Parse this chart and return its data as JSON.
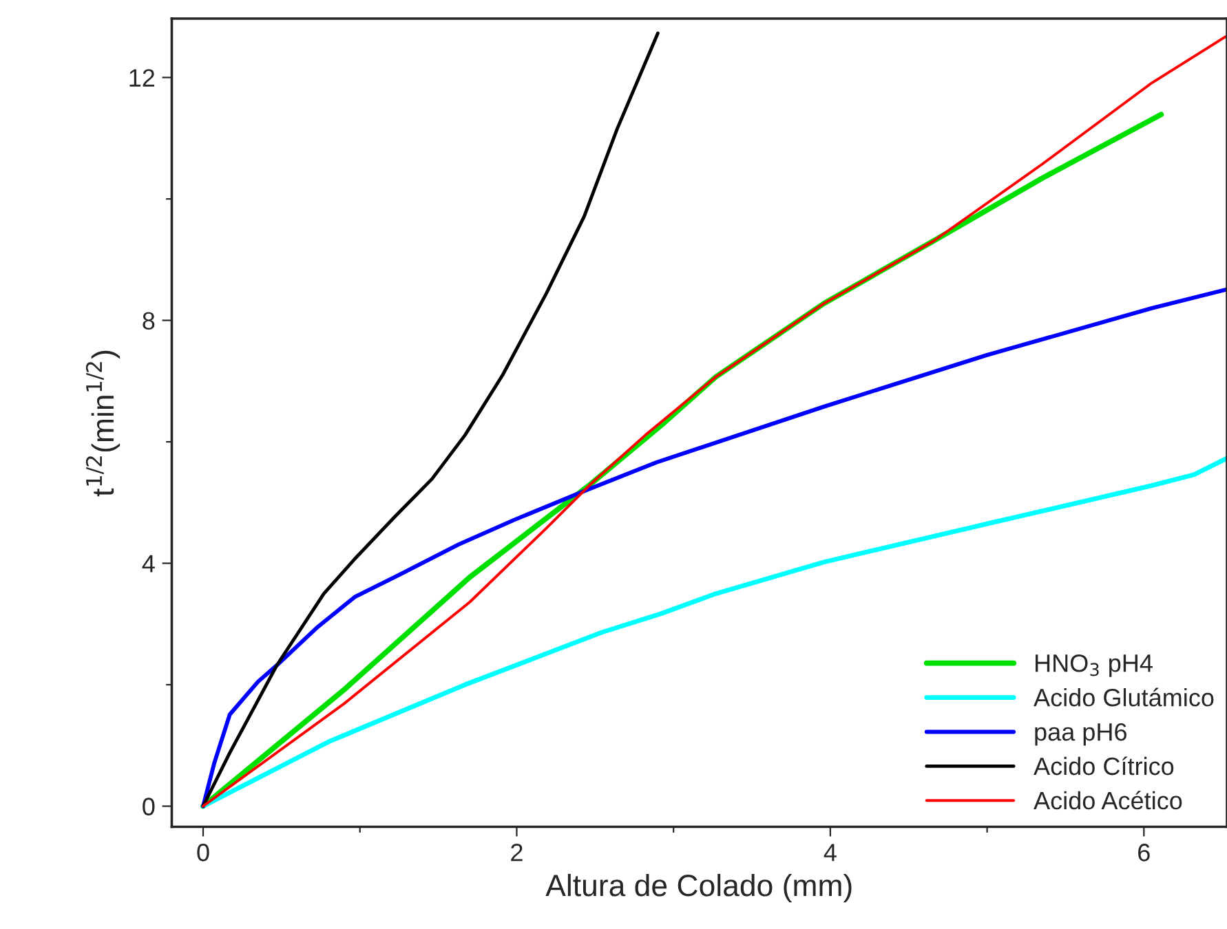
{
  "chart_data": {
    "type": "line",
    "xlabel": "Altura de Colado (mm)",
    "ylabel": "t$^{1/2}$(min$^{1/2}$)",
    "xlim": [
      -0.2,
      6.53
    ],
    "ylim": [
      -0.34,
      12.97
    ],
    "xticks": [
      0,
      {
        "value": 1,
        "label": null
      },
      2,
      {
        "value": 3,
        "label": null
      },
      4,
      {
        "value": 5,
        "label": null
      },
      6
    ],
    "yticks": [
      0,
      {
        "value": 2,
        "label": null
      },
      4,
      {
        "value": 6,
        "label": null
      },
      8,
      {
        "value": 10,
        "label": null
      },
      12
    ],
    "grid": false,
    "legend": "bottom right",
    "marker": "none",
    "line_style": "solid",
    "series": [
      {
        "name": "HNO$_{3}$ pH4",
        "color": "#00e000",
        "x": [
          0,
          0.9,
          1.7,
          2.47,
          2.92,
          3.27,
          3.96,
          4.66,
          5.35,
          6.11
        ],
        "values": [
          0,
          1.92,
          3.77,
          5.3,
          6.27,
          7.07,
          8.28,
          9.31,
          10.34,
          11.39
        ]
      },
      {
        "name": "Acido Glutámico",
        "color": "#00ffff",
        "x": [
          0,
          0.8,
          1.67,
          2.54,
          2.92,
          3.27,
          3.96,
          5.0,
          6.05,
          6.32,
          6.53
        ],
        "values": [
          0,
          1.06,
          2.0,
          2.86,
          3.17,
          3.5,
          4.02,
          4.65,
          5.28,
          5.46,
          5.73
        ]
      },
      {
        "name": "paa pH6",
        "color": "#0000ff",
        "x": [
          0,
          0.07,
          0.17,
          0.35,
          0.47,
          0.73,
          0.97,
          1.25,
          1.63,
          1.98,
          2.45,
          2.89,
          3.96,
          5.0,
          6.05,
          6.53
        ],
        "values": [
          0,
          0.7,
          1.51,
          2.05,
          2.32,
          2.95,
          3.45,
          3.81,
          4.31,
          4.71,
          5.21,
          5.66,
          6.58,
          7.43,
          8.2,
          8.51
        ]
      },
      {
        "name": "Acido Cítrico",
        "color": "#000000",
        "x": [
          0,
          0.17,
          0.47,
          0.77,
          0.97,
          1.22,
          1.46,
          1.67,
          1.91,
          2.19,
          2.43,
          2.64,
          2.9
        ],
        "values": [
          0,
          0.88,
          2.32,
          3.5,
          4.08,
          4.76,
          5.39,
          6.11,
          7.1,
          8.45,
          9.71,
          11.15,
          12.73
        ]
      },
      {
        "name": "Acido Acético",
        "color": "#ff0000",
        "x": [
          0,
          0.9,
          1.7,
          2.19,
          2.47,
          2.82,
          3.27,
          3.96,
          4.66,
          5.35,
          6.05,
          6.52
        ],
        "values": [
          0,
          1.69,
          3.36,
          4.58,
          5.3,
          6.11,
          7.07,
          8.28,
          9.31,
          10.57,
          11.91,
          12.67
        ]
      }
    ]
  }
}
